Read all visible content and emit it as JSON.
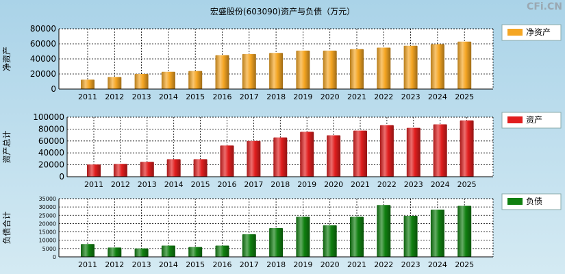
{
  "watermark": "CFi.CN",
  "chart_data": {
    "title": "宏盛股份(603090)资产与负债（万元）",
    "categories": [
      "2011",
      "2012",
      "2013",
      "2014",
      "2015",
      "2016",
      "2017",
      "2018",
      "2019",
      "2020",
      "2021",
      "2022",
      "2023",
      "2024",
      "2025"
    ],
    "panels": [
      {
        "type": "bar",
        "ylabel": "净资产",
        "legend": "净资产",
        "color": "#f5a623",
        "ylim": [
          0,
          80000
        ],
        "ticks": [
          0,
          20000,
          40000,
          60000,
          80000
        ],
        "values": [
          12500,
          16000,
          20000,
          23000,
          24000,
          45000,
          46500,
          48000,
          51000,
          51000,
          53000,
          55000,
          57500,
          59500,
          63000
        ]
      },
      {
        "type": "bar",
        "ylabel": "资产总计",
        "legend": "资产",
        "color": "#e11e1e",
        "ylim": [
          0,
          100000
        ],
        "ticks": [
          0,
          20000,
          40000,
          60000,
          80000,
          100000
        ],
        "values": [
          20500,
          21500,
          25000,
          29500,
          29500,
          52500,
          60000,
          66000,
          75500,
          69500,
          77500,
          86500,
          82000,
          88000,
          94500
        ]
      },
      {
        "type": "bar",
        "ylabel": "负债合计",
        "legend": "负债",
        "color": "#108010",
        "ylim": [
          0,
          35000
        ],
        "ticks": [
          0,
          5000,
          10000,
          15000,
          20000,
          25000,
          30000,
          35000
        ],
        "values": [
          7700,
          5600,
          5100,
          6800,
          5900,
          6800,
          13600,
          17300,
          24100,
          19000,
          24100,
          31200,
          24700,
          28400,
          30700
        ]
      }
    ]
  }
}
